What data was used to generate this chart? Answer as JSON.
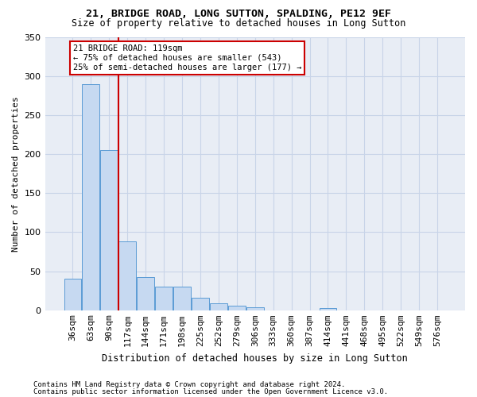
{
  "title": "21, BRIDGE ROAD, LONG SUTTON, SPALDING, PE12 9EF",
  "subtitle": "Size of property relative to detached houses in Long Sutton",
  "xlabel": "Distribution of detached houses by size in Long Sutton",
  "ylabel": "Number of detached properties",
  "footnote1": "Contains HM Land Registry data © Crown copyright and database right 2024.",
  "footnote2": "Contains public sector information licensed under the Open Government Licence v3.0.",
  "annotation_line1": "21 BRIDGE ROAD: 119sqm",
  "annotation_line2": "← 75% of detached houses are smaller (543)",
  "annotation_line3": "25% of semi-detached houses are larger (177) →",
  "property_size_idx": 3,
  "bar_color": "#c6d9f1",
  "bar_edge_color": "#5b9bd5",
  "red_line_color": "#cc0000",
  "annotation_box_color": "#cc0000",
  "bg_color": "#ffffff",
  "plot_bg_color": "#e8edf5",
  "grid_color": "#c8d4e8",
  "categories": [
    "36sqm",
    "63sqm",
    "90sqm",
    "117sqm",
    "144sqm",
    "171sqm",
    "198sqm",
    "225sqm",
    "252sqm",
    "279sqm",
    "306sqm",
    "333sqm",
    "360sqm",
    "387sqm",
    "414sqm",
    "441sqm",
    "468sqm",
    "495sqm",
    "522sqm",
    "549sqm",
    "576sqm"
  ],
  "values": [
    40,
    290,
    205,
    88,
    42,
    30,
    30,
    16,
    9,
    6,
    4,
    0,
    0,
    0,
    3,
    0,
    0,
    0,
    0,
    0,
    0
  ],
  "ylim": [
    0,
    350
  ],
  "yticks": [
    0,
    50,
    100,
    150,
    200,
    250,
    300,
    350
  ],
  "title_fontsize": 9.5,
  "subtitle_fontsize": 8.5,
  "xlabel_fontsize": 8.5,
  "ylabel_fontsize": 8.0,
  "tick_fontsize": 8.0,
  "annot_fontsize": 7.5,
  "footnote_fontsize": 6.5
}
